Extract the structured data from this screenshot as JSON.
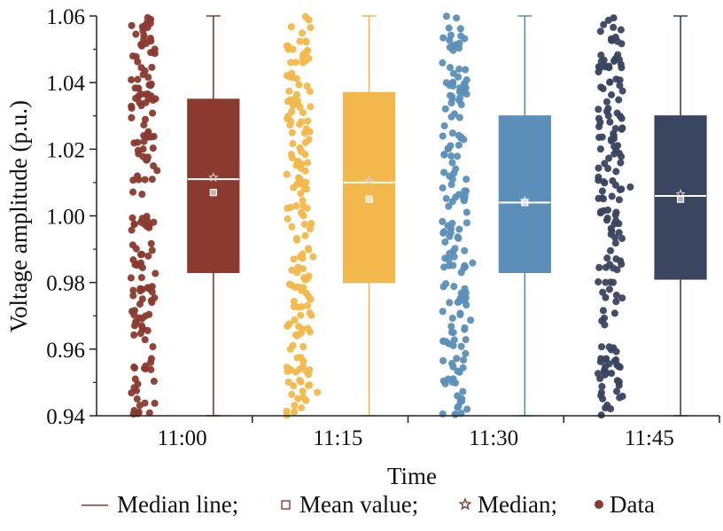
{
  "chart_data": {
    "type": "box",
    "xlabel": "Time",
    "ylabel": "Voltage amplitude (p.u.)",
    "categories": [
      "11:00",
      "11:15",
      "11:30",
      "11:45"
    ],
    "ylim": [
      0.94,
      1.06
    ],
    "yticks": [
      "0.94",
      "0.96",
      "0.98",
      "1.00",
      "1.02",
      "1.04",
      "1.06"
    ],
    "series": [
      {
        "category": "11:00",
        "color": "#8b3a2f",
        "whisker_low": 0.94,
        "q1": 0.983,
        "median": 1.011,
        "mean": 1.007,
        "q3": 1.035,
        "whisker_high": 1.06
      },
      {
        "category": "11:15",
        "color": "#f2b84b",
        "whisker_low": 0.94,
        "q1": 0.98,
        "median": 1.01,
        "mean": 1.005,
        "q3": 1.037,
        "whisker_high": 1.06
      },
      {
        "category": "11:30",
        "color": "#5b8fb9",
        "whisker_low": 0.94,
        "q1": 0.983,
        "median": 1.004,
        "mean": 1.004,
        "q3": 1.03,
        "whisker_high": 1.06
      },
      {
        "category": "11:45",
        "color": "#3a4560",
        "whisker_low": 0.94,
        "q1": 0.981,
        "median": 1.006,
        "mean": 1.005,
        "q3": 1.03,
        "whisker_high": 1.06
      }
    ],
    "legend": {
      "position": "bottom",
      "items": [
        "Median line;",
        "Mean value;",
        "Median;",
        "Data"
      ]
    }
  }
}
